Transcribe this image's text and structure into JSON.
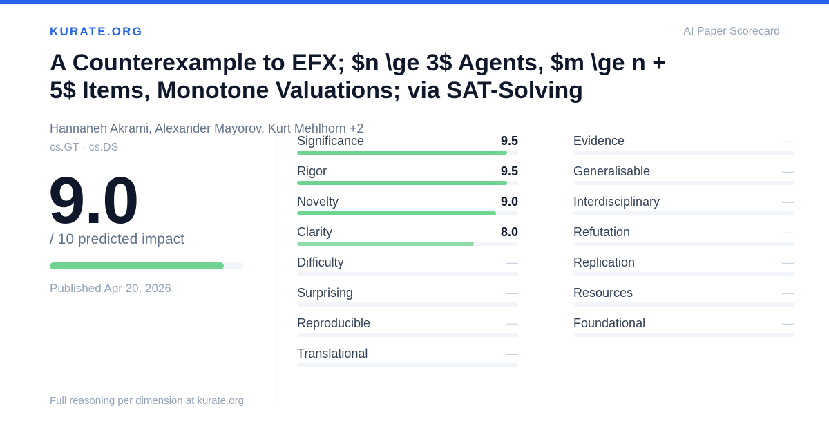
{
  "header": {
    "brand": "KURATE.ORG",
    "tag": "AI Paper Scorecard"
  },
  "paper": {
    "title": "A Counterexample to EFX; $n \\ge 3$ Agents, $m \\ge n + 5$ Items, Monotone Valuations; via SAT-Solving",
    "authors": "Hannaneh Akrami, Alexander Mayorov, Kurt Mehlhorn +2",
    "categories": "cs.GT · cs.DS",
    "score": "9.0",
    "score_fraction": 0.9,
    "scale_label": "/ 10 predicted impact",
    "published": "Published Apr 20, 2026"
  },
  "dimensions_left": [
    {
      "label": "Significance",
      "value": "9.5",
      "fraction": 0.95
    },
    {
      "label": "Rigor",
      "value": "9.5",
      "fraction": 0.95
    },
    {
      "label": "Novelty",
      "value": "9.0",
      "fraction": 0.9
    },
    {
      "label": "Clarity",
      "value": "8.0",
      "fraction": 0.8
    },
    {
      "label": "Difficulty",
      "value": "—",
      "fraction": 0
    },
    {
      "label": "Surprising",
      "value": "—",
      "fraction": 0
    },
    {
      "label": "Reproducible",
      "value": "—",
      "fraction": 0
    },
    {
      "label": "Translational",
      "value": "—",
      "fraction": 0
    }
  ],
  "dimensions_right": [
    {
      "label": "Evidence",
      "value": "—",
      "fraction": 0
    },
    {
      "label": "Generalisable",
      "value": "—",
      "fraction": 0
    },
    {
      "label": "Interdisciplinary",
      "value": "—",
      "fraction": 0
    },
    {
      "label": "Refutation",
      "value": "—",
      "fraction": 0
    },
    {
      "label": "Replication",
      "value": "—",
      "fraction": 0
    },
    {
      "label": "Resources",
      "value": "—",
      "fraction": 0
    },
    {
      "label": "Foundational",
      "value": "—",
      "fraction": 0
    }
  ],
  "footer": {
    "text": "Full reasoning per dimension at kurate.org"
  },
  "colors": {
    "accent": "#2563eb",
    "bar_fill": "#6fd391",
    "bar_fill_light": "#8fdcaa",
    "track": "#f1f5f9"
  }
}
